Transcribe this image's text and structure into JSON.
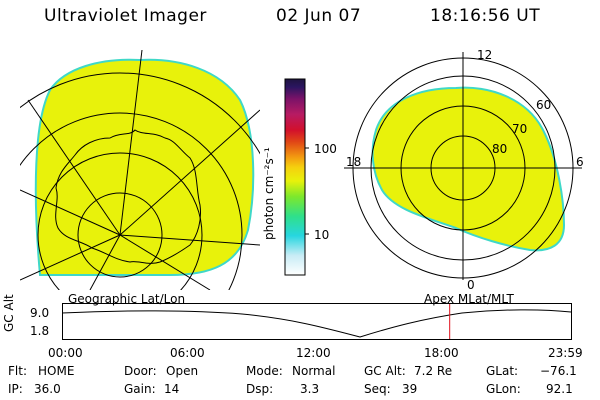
{
  "header": {
    "instrument": "Ultraviolet Imager",
    "date": "02 Jun 07",
    "time": "18:16:56 UT"
  },
  "left_map": {
    "caption": "Geographic Lat/Lon"
  },
  "right_map": {
    "caption": "Apex  MLat/MLT",
    "lat_labels": [
      "60",
      "70",
      "80"
    ],
    "mlt_labels": [
      "12",
      "18",
      "6",
      "0"
    ]
  },
  "colorbar": {
    "unit_label": "photon cm⁻²s⁻¹",
    "ticks": [
      "100",
      "10"
    ],
    "colors": [
      "#ffffff",
      "#c8ecf5",
      "#27d6e0",
      "#2fe08a",
      "#7de82c",
      "#e8f20b",
      "#f5d00e",
      "#f39c10",
      "#e04516",
      "#d2102c",
      "#b71b63",
      "#7a1268",
      "#2a1560",
      "#1f1440"
    ]
  },
  "timeline": {
    "y_axis_label": "GC Alt",
    "y_ticks": [
      "9.0",
      "1.8"
    ],
    "x_ticks": [
      "00:00",
      "06:00",
      "12:00",
      "18:00",
      "23:59"
    ],
    "current_time_hours": 18.28
  },
  "status": {
    "flt_label": "Flt:",
    "flt_value": "HOME",
    "ip_label": "IP:",
    "ip_value": "36.0",
    "door_label": "Door:",
    "door_value": "Open",
    "gain_label": "Gain:",
    "gain_value": "14",
    "mode_label": "Mode:",
    "mode_value": "Normal",
    "dsp_label": "Dsp:",
    "dsp_value": "3.3",
    "gcalt_label": "GC Alt:",
    "gcalt_value": "7.2 Re",
    "seq_label": "Seq:",
    "seq_value": "39",
    "glat_label": "GLat:",
    "glat_value": "−76.1",
    "glon_label": "GLon:",
    "glon_value": "92.1"
  }
}
